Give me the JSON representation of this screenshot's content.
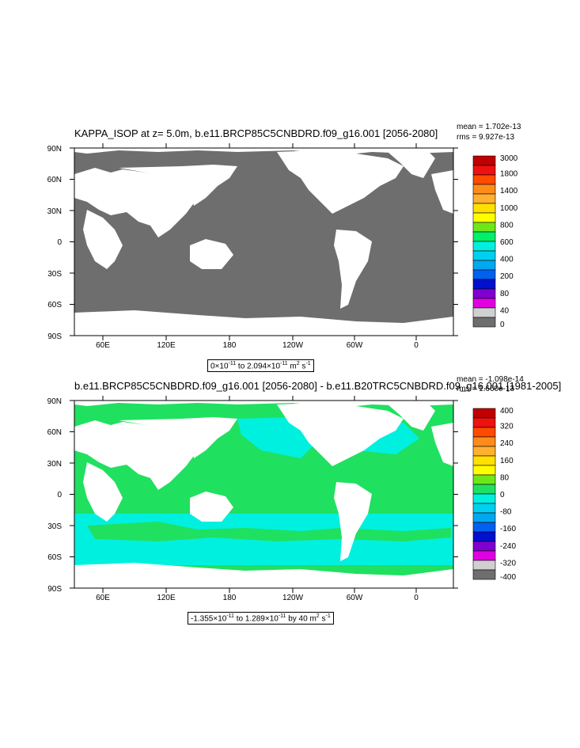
{
  "panel1": {
    "title": "KAPPA_ISOP at z=   5.0m, b.e11.BRCP85C5CNBDRD.f09_g16.001 [2056-2080]",
    "stats_mean": "mean = 1.702e-13",
    "stats_rms": "rms = 9.927e-13",
    "range": {
      "prefix": "0×10",
      "exp1": "-11",
      "mid": " to 2.094×10",
      "exp2": "-11",
      "unit": " m",
      "exp3": "2",
      "tail": " s",
      "exp4": "-1"
    },
    "colorbar": {
      "labels": [
        "3000",
        "1800",
        "1400",
        "1000",
        "800",
        "600",
        "400",
        "200",
        "80",
        "40",
        "0"
      ],
      "colors": [
        "#c00000",
        "#ef1010",
        "#ff4a00",
        "#ff8c1a",
        "#ffb030",
        "#ffe000",
        "#ffff00",
        "#6ee619",
        "#00f06a",
        "#00f0e0",
        "#00d0f0",
        "#00a8f0",
        "#0060f0",
        "#0010d0",
        "#8000d0",
        "#e000e0",
        "#d0d0d0",
        "#6e6e6e"
      ]
    },
    "ocean_color": "#6e6e6e"
  },
  "panel2": {
    "title": "b.e11.BRCP85C5CNBDRD.f09_g16.001 [2056-2080] - b.e11.B20TRC5CNBDRD.f09_g16.001 [1981-2005]",
    "stats_mean": "mean = -1.098e-14",
    "stats_rms": "rms = 1.660e-13",
    "range": {
      "prefix": "-1.355×10",
      "exp1": "-11",
      "mid": " to 1.289×10",
      "exp2": "-11",
      "tail1": " by 40 m",
      "exp3": "2",
      "tail": " s",
      "exp4": "-1"
    },
    "colorbar": {
      "labels": [
        "400",
        "320",
        "240",
        "160",
        "80",
        "0",
        "-80",
        "-160",
        "-240",
        "-320",
        "-400"
      ],
      "colors": [
        "#c00000",
        "#ef1010",
        "#ff4a00",
        "#ff8c1a",
        "#ffb030",
        "#ffe000",
        "#ffff00",
        "#6ee619",
        "#20e060",
        "#00f0e0",
        "#00d0f0",
        "#00a8f0",
        "#0060f0",
        "#0010d0",
        "#8000d0",
        "#e000e0",
        "#d0d0d0",
        "#6e6e6e"
      ]
    },
    "ocean_color": "#20e060",
    "ocean_color2": "#00f0e0"
  },
  "lat_labels": [
    "90N",
    "60N",
    "30N",
    "0",
    "30S",
    "60S",
    "90S"
  ],
  "lon_labels": [
    "60E",
    "120E",
    "180",
    "120W",
    "60W",
    "0"
  ]
}
